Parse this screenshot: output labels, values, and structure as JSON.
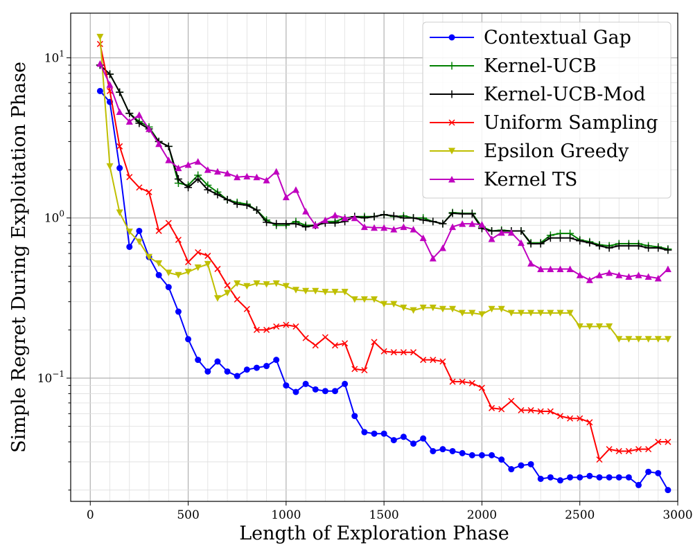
{
  "chart_data": {
    "type": "line",
    "xlabel": "Length of Exploration Phase",
    "ylabel": "Simple Regret During Exploitation Phase",
    "xlim": [
      -100,
      3000
    ],
    "ylim": [
      0.017,
      19
    ],
    "yscale": "log",
    "grid": true,
    "legend": "top-right",
    "xticks": [
      0,
      500,
      1000,
      1500,
      2000,
      2500,
      3000
    ],
    "xtick_labels": [
      "0",
      "500",
      "1000",
      "1500",
      "2000",
      "2500",
      "3000"
    ],
    "ytick_labels": [
      {
        "base": "10",
        "exp": "1",
        "value": 10
      },
      {
        "base": "10",
        "exp": "0",
        "value": 1
      },
      {
        "base": "10",
        "exp": "−1",
        "value": 0.1
      }
    ],
    "x": [
      50,
      100,
      150,
      200,
      250,
      300,
      350,
      400,
      450,
      500,
      550,
      600,
      650,
      700,
      750,
      800,
      850,
      900,
      950,
      1000,
      1050,
      1100,
      1150,
      1200,
      1250,
      1300,
      1350,
      1400,
      1450,
      1500,
      1550,
      1600,
      1650,
      1700,
      1750,
      1800,
      1850,
      1900,
      1950,
      2000,
      2050,
      2100,
      2150,
      2200,
      2250,
      2300,
      2350,
      2400,
      2450,
      2500,
      2550,
      2600,
      2650,
      2700,
      2750,
      2800,
      2850,
      2900,
      2950
    ],
    "series": [
      {
        "name": "Contextual Gap",
        "color": "#0000ff",
        "marker": "circle",
        "values": [
          6.2,
          5.3,
          2.05,
          0.66,
          0.83,
          0.57,
          0.44,
          0.37,
          0.26,
          0.175,
          0.13,
          0.11,
          0.127,
          0.11,
          0.103,
          0.113,
          0.116,
          0.119,
          0.13,
          0.09,
          0.082,
          0.092,
          0.085,
          0.083,
          0.083,
          0.092,
          0.058,
          0.046,
          0.045,
          0.045,
          0.041,
          0.043,
          0.039,
          0.042,
          0.035,
          0.036,
          0.035,
          0.034,
          0.033,
          0.033,
          0.033,
          0.031,
          0.027,
          0.0285,
          0.029,
          0.0235,
          0.024,
          0.023,
          0.024,
          0.024,
          0.0245,
          0.024,
          0.024,
          0.024,
          0.024,
          0.0215,
          0.026,
          0.0255,
          0.02
        ]
      },
      {
        "name": "Kernel-UCB",
        "color": "#008000",
        "marker": "plus",
        "values": [
          9.0,
          7.9,
          6.1,
          4.5,
          4.0,
          3.7,
          3.0,
          2.8,
          1.65,
          1.6,
          1.85,
          1.6,
          1.45,
          1.3,
          1.25,
          1.22,
          1.12,
          0.97,
          0.9,
          0.9,
          0.95,
          0.9,
          0.9,
          0.95,
          0.95,
          1.0,
          1.02,
          1.02,
          1.02,
          1.05,
          1.02,
          1.03,
          1.0,
          1.0,
          0.95,
          0.92,
          1.08,
          1.07,
          1.07,
          0.88,
          0.83,
          0.84,
          0.83,
          0.83,
          0.7,
          0.7,
          0.78,
          0.8,
          0.8,
          0.73,
          0.71,
          0.68,
          0.67,
          0.69,
          0.69,
          0.69,
          0.67,
          0.66,
          0.64
        ]
      },
      {
        "name": "Kernel-UCB-Mod",
        "color": "#000000",
        "marker": "plus",
        "values": [
          9.0,
          7.9,
          6.1,
          4.5,
          3.9,
          3.6,
          3.0,
          2.8,
          1.75,
          1.55,
          1.75,
          1.5,
          1.4,
          1.3,
          1.22,
          1.2,
          1.12,
          0.94,
          0.92,
          0.92,
          0.92,
          0.88,
          0.9,
          0.93,
          0.93,
          0.95,
          1.02,
          1.0,
          1.02,
          1.05,
          1.03,
          1.0,
          1.0,
          0.97,
          0.95,
          0.92,
          1.07,
          1.06,
          1.06,
          0.86,
          0.83,
          0.83,
          0.83,
          0.83,
          0.69,
          0.69,
          0.75,
          0.75,
          0.75,
          0.72,
          0.7,
          0.67,
          0.65,
          0.67,
          0.67,
          0.67,
          0.65,
          0.65,
          0.63
        ]
      },
      {
        "name": "Uniform Sampling",
        "color": "#ff0000",
        "marker": "x",
        "values": [
          12.2,
          6.2,
          2.8,
          1.8,
          1.55,
          1.45,
          0.83,
          0.93,
          0.73,
          0.53,
          0.61,
          0.58,
          0.48,
          0.38,
          0.31,
          0.27,
          0.2,
          0.2,
          0.21,
          0.215,
          0.21,
          0.178,
          0.16,
          0.18,
          0.16,
          0.165,
          0.114,
          0.112,
          0.168,
          0.147,
          0.145,
          0.145,
          0.145,
          0.13,
          0.13,
          0.127,
          0.095,
          0.095,
          0.093,
          0.087,
          0.065,
          0.064,
          0.072,
          0.063,
          0.063,
          0.062,
          0.062,
          0.058,
          0.056,
          0.056,
          0.053,
          0.031,
          0.036,
          0.035,
          0.035,
          0.036,
          0.036,
          0.04,
          0.04
        ]
      },
      {
        "name": "Epsilon Greedy",
        "color": "#bfbf00",
        "marker": "triangle-down",
        "values": [
          13.5,
          2.1,
          1.08,
          0.82,
          0.71,
          0.57,
          0.52,
          0.455,
          0.44,
          0.46,
          0.49,
          0.515,
          0.315,
          0.34,
          0.39,
          0.375,
          0.39,
          0.385,
          0.39,
          0.375,
          0.355,
          0.35,
          0.35,
          0.345,
          0.345,
          0.345,
          0.31,
          0.31,
          0.31,
          0.29,
          0.29,
          0.275,
          0.265,
          0.275,
          0.275,
          0.27,
          0.27,
          0.255,
          0.255,
          0.25,
          0.27,
          0.27,
          0.255,
          0.255,
          0.255,
          0.255,
          0.255,
          0.255,
          0.255,
          0.21,
          0.21,
          0.21,
          0.21,
          0.175,
          0.175,
          0.175,
          0.175,
          0.175,
          0.175
        ]
      },
      {
        "name": "Kernel TS",
        "color": "#bf00bf",
        "marker": "triangle-up",
        "values": [
          9.2,
          6.8,
          4.6,
          4.0,
          4.4,
          3.6,
          2.9,
          2.3,
          2.05,
          2.15,
          2.25,
          2.0,
          1.95,
          1.9,
          1.8,
          1.82,
          1.8,
          1.72,
          1.95,
          1.35,
          1.5,
          1.1,
          0.9,
          0.97,
          1.04,
          1.0,
          1.0,
          0.88,
          0.87,
          0.87,
          0.85,
          0.88,
          0.85,
          0.75,
          0.56,
          0.65,
          0.88,
          0.92,
          0.92,
          0.91,
          0.74,
          0.81,
          0.81,
          0.7,
          0.52,
          0.48,
          0.48,
          0.48,
          0.48,
          0.44,
          0.41,
          0.44,
          0.455,
          0.44,
          0.43,
          0.44,
          0.43,
          0.42,
          0.48
        ]
      }
    ]
  }
}
